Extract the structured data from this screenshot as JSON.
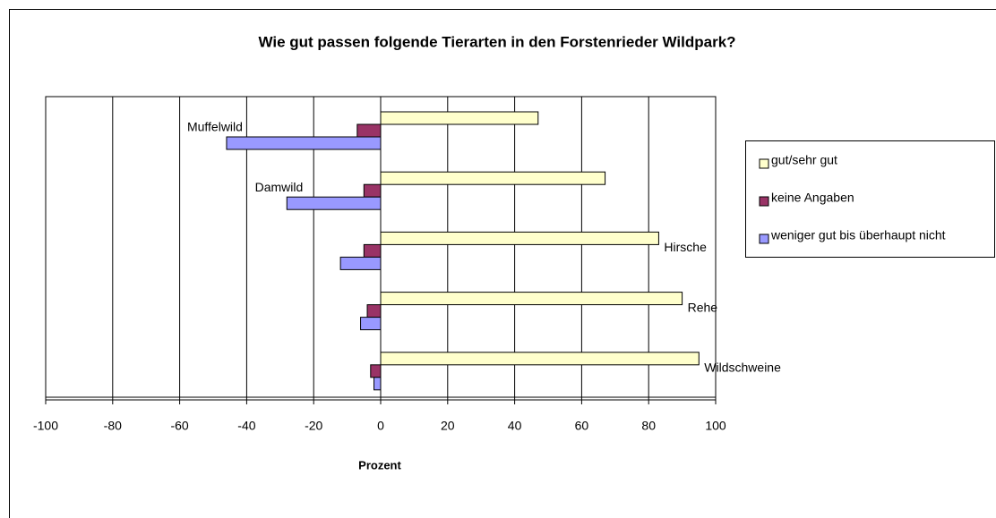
{
  "chart_data": {
    "type": "bar",
    "orientation": "horizontal",
    "title": "Wie gut passen folgende Tierarten in den Forstenrieder Wildpark?",
    "xlabel": "Prozent",
    "categories": [
      "Muffelwild",
      "Damwild",
      "Hirsche",
      "Rehe",
      "Wildschweine"
    ],
    "series": [
      {
        "name": "gut/sehr gut",
        "color": "#ffffcc",
        "values": [
          47,
          67,
          83,
          90,
          95
        ]
      },
      {
        "name": "keine Angaben",
        "color": "#993366",
        "values": [
          -7,
          -5,
          -5,
          -4,
          -3
        ]
      },
      {
        "name": "weniger gut bis überhaupt nicht",
        "color": "#9999ff",
        "values": [
          -46,
          -28,
          -12,
          -6,
          -2
        ]
      }
    ],
    "xlim": [
      -100,
      100
    ],
    "xticks": [
      -100,
      -80,
      -60,
      -40,
      -20,
      0,
      20,
      40,
      60,
      80,
      100
    ],
    "grid": true,
    "legend": "right"
  }
}
